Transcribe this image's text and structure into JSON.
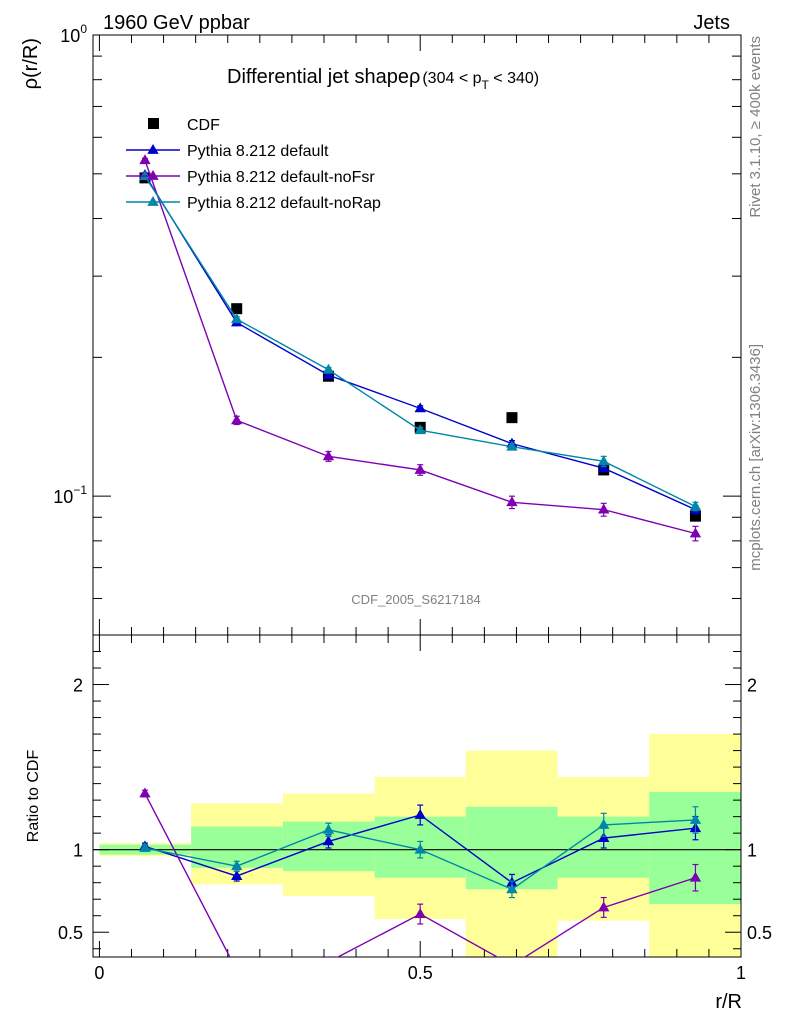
{
  "header": {
    "left": "1960 GeV ppbar",
    "right": "Jets"
  },
  "side_texts": {
    "rivet": "Rivet 3.1.10, ≥ 400k events",
    "mcplots": "mcplots.cern.ch [arXiv:1306.3436]"
  },
  "chart_data": [
    {
      "type": "line",
      "panel": "main",
      "title": "Differential jet shapeρ",
      "title_suffix": "(304 < p_T < 340)",
      "title_parts": {
        "main": "Differential jet shapeρ",
        "pre": "(304 < p",
        "sub": "T",
        "post": " < 340)"
      },
      "ylabel": "ρ(r/R)",
      "yscale": "log",
      "ylim": [
        0.05,
        1.0
      ],
      "xlim": [
        -0.01,
        1.0
      ],
      "y_tick_labels": [
        {
          "value": 0.1,
          "base": "10",
          "exp": "−1"
        },
        {
          "value": 1.0,
          "base": "10",
          "exp": "0"
        }
      ],
      "watermark": "CDF_2005_S6217184",
      "x": [
        0.071,
        0.214,
        0.357,
        0.5,
        0.643,
        0.786,
        0.929
      ],
      "series": [
        {
          "name": "CDF",
          "marker": "square",
          "color": "#000000",
          "values": [
            0.49,
            0.255,
            0.182,
            0.141,
            0.148,
            0.114,
            0.0905
          ]
        },
        {
          "name": "Pythia 8.212 default",
          "marker": "triangle",
          "color": "#0000cc",
          "values": [
            0.497,
            0.238,
            0.183,
            0.155,
            0.13,
            0.115,
            0.0935
          ],
          "errors": [
            0.004,
            0.003,
            0.002,
            0.002,
            0.002,
            0.002,
            0.002
          ]
        },
        {
          "name": "Pythia 8.212 default-noFsr",
          "marker": "triangle",
          "color": "#7f00b2",
          "values": [
            0.535,
            0.146,
            0.122,
            0.114,
            0.097,
            0.0935,
            0.083
          ],
          "errors": [
            0.005,
            0.003,
            0.003,
            0.003,
            0.003,
            0.003,
            0.003
          ]
        },
        {
          "name": "Pythia 8.212 default-noRap",
          "marker": "triangle",
          "color": "#0086a8",
          "values": [
            0.494,
            0.242,
            0.188,
            0.139,
            0.128,
            0.119,
            0.095
          ],
          "errors": [
            0.004,
            0.003,
            0.002,
            0.002,
            0.002,
            0.003,
            0.002
          ]
        }
      ]
    },
    {
      "type": "line",
      "panel": "ratio",
      "ylabel": "Ratio to CDF",
      "xlabel": "r/R",
      "ylim": [
        0.35,
        2.3
      ],
      "xlim": [
        -0.01,
        1.0
      ],
      "x_ticks": [
        "0",
        "0.5",
        "1"
      ],
      "y_ticks": [
        "0.5",
        "1",
        "2"
      ],
      "x": [
        0.071,
        0.214,
        0.357,
        0.5,
        0.643,
        0.786,
        0.929
      ],
      "bins": [
        [
          0.0,
          0.143
        ],
        [
          0.143,
          0.286
        ],
        [
          0.286,
          0.429
        ],
        [
          0.429,
          0.571
        ],
        [
          0.571,
          0.714
        ],
        [
          0.714,
          0.857
        ],
        [
          0.857,
          1.0
        ]
      ],
      "band_stat": [
        [
          0.97,
          1.03
        ],
        [
          0.89,
          1.14
        ],
        [
          0.87,
          1.17
        ],
        [
          0.83,
          1.2
        ],
        [
          0.76,
          1.26
        ],
        [
          0.83,
          1.2
        ],
        [
          0.67,
          1.35
        ]
      ],
      "band_total": [
        [
          0.96,
          1.04
        ],
        [
          0.79,
          1.28
        ],
        [
          0.72,
          1.34
        ],
        [
          0.58,
          1.44
        ],
        [
          0.35,
          1.6
        ],
        [
          0.57,
          1.44
        ],
        [
          0.35,
          1.7
        ]
      ],
      "band_colors": {
        "total": "#ffff99",
        "stat": "#99ff99"
      },
      "series": [
        {
          "name": "Pythia 8.212 default",
          "color": "#0000cc",
          "values": [
            1.02,
            0.84,
            1.05,
            1.21,
            0.8,
            1.07,
            1.13
          ],
          "errors": [
            0.02,
            0.03,
            0.04,
            0.06,
            0.05,
            0.06,
            0.07
          ]
        },
        {
          "name": "Pythia 8.212 default-noFsr",
          "color": "#7f00b2",
          "values": [
            1.34,
            0.27,
            0.32,
            0.61,
            0.3,
            0.65,
            0.83
          ],
          "errors": [
            0.02,
            0.02,
            0.03,
            0.06,
            0.04,
            0.06,
            0.08
          ]
        },
        {
          "name": "Pythia 8.212 default-noRap",
          "color": "#0086a8",
          "values": [
            1.01,
            0.9,
            1.12,
            1.0,
            0.76,
            1.15,
            1.18
          ],
          "errors": [
            0.02,
            0.03,
            0.04,
            0.05,
            0.05,
            0.07,
            0.08
          ]
        }
      ]
    }
  ]
}
